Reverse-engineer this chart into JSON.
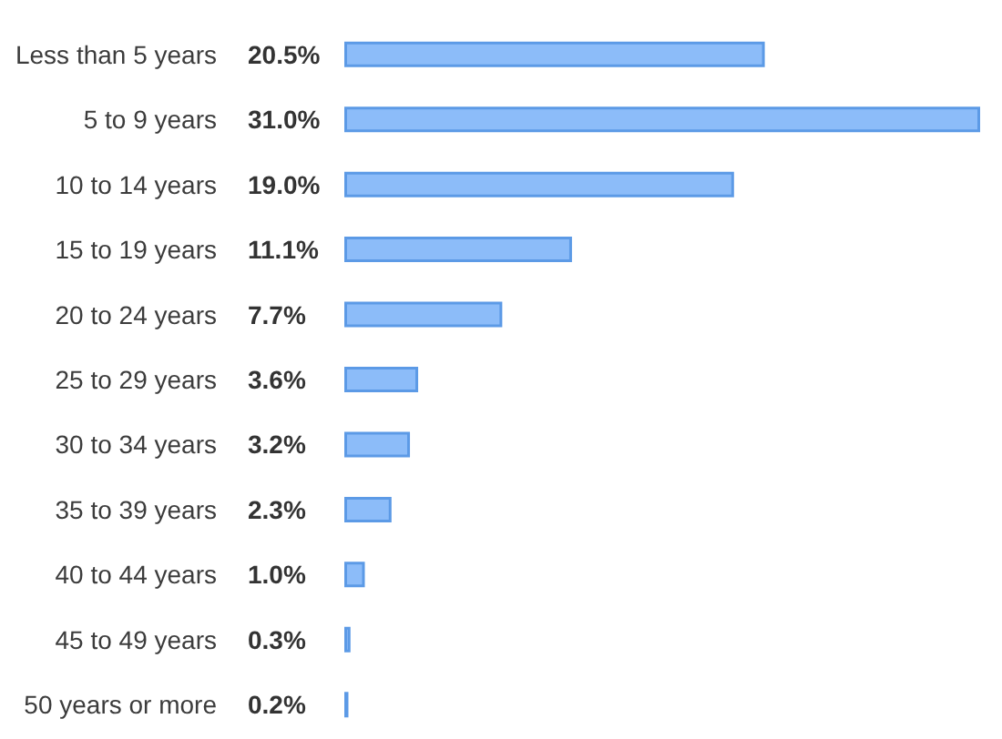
{
  "chart_data": {
    "type": "bar",
    "orientation": "horizontal",
    "categories": [
      "Less than 5 years",
      "5 to 9 years",
      "10 to 14 years",
      "15 to 19 years",
      "20 to 24 years",
      "25 to 29 years",
      "30 to 34 years",
      "35 to 39 years",
      "40 to 44 years",
      "45 to 49 years",
      "50 years or more"
    ],
    "values": [
      20.5,
      31.0,
      19.0,
      11.1,
      7.7,
      3.6,
      3.2,
      2.3,
      1.0,
      0.3,
      0.2
    ],
    "value_labels": [
      "20.5%",
      "31.0%",
      "19.0%",
      "11.1%",
      "7.7%",
      "3.6%",
      "3.2%",
      "2.3%",
      "1.0%",
      "0.3%",
      "0.2%"
    ],
    "color": "#8cbcf9",
    "xlim": [
      0,
      31
    ],
    "tick_labels": "y"
  }
}
